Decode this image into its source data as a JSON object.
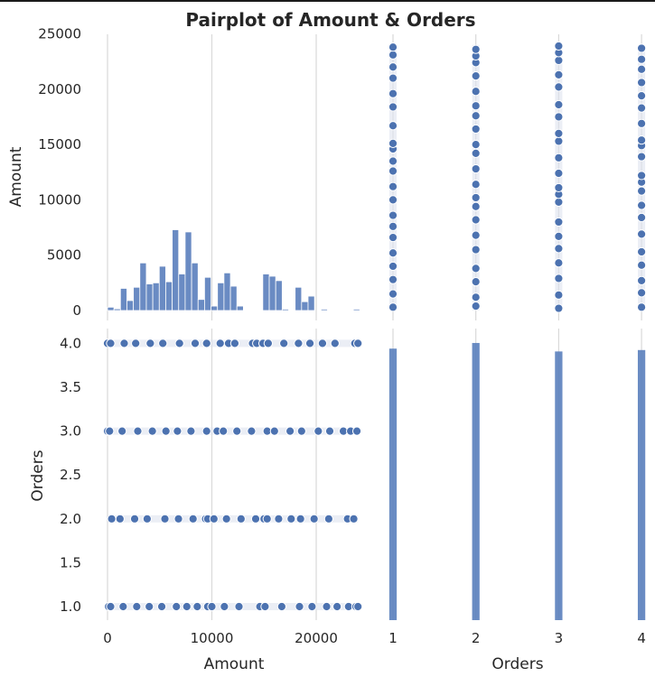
{
  "chart_data": {
    "type": "scatter",
    "title": "Pairplot of Amount & Orders",
    "variables": [
      "Amount",
      "Orders"
    ],
    "colors": {
      "marker": "#4c72b0",
      "bar": "#5a7fbd",
      "marker_edge": "#ffffff",
      "grid": "#d9d9d9",
      "frame": "#cfcfcf"
    },
    "grid": true,
    "amount_axis": {
      "label": "Amount",
      "range": [
        -1200,
        25000
      ],
      "ticks": [
        "0",
        "5000",
        "10000",
        "15000",
        "20000",
        "25000"
      ],
      "x_ticks": [
        "0",
        "10000",
        "20000"
      ]
    },
    "orders_axis": {
      "label": "Orders",
      "range": [
        0.85,
        4.1
      ],
      "y_ticks": [
        "1.0",
        "1.5",
        "2.0",
        "2.5",
        "3.0",
        "3.5",
        "4.0"
      ],
      "x_ticks": [
        "1",
        "2",
        "3",
        "4"
      ]
    },
    "panels": [
      {
        "position": "top-left",
        "type": "histogram",
        "variable": "Amount",
        "bin_width": 620,
        "bins": [
          {
            "start": 0,
            "count": 300
          },
          {
            "start": 620,
            "count": 150
          },
          {
            "start": 1240,
            "count": 2000
          },
          {
            "start": 1860,
            "count": 900
          },
          {
            "start": 2480,
            "count": 2100
          },
          {
            "start": 3100,
            "count": 4300
          },
          {
            "start": 3720,
            "count": 2400
          },
          {
            "start": 4340,
            "count": 2500
          },
          {
            "start": 4960,
            "count": 4000
          },
          {
            "start": 5580,
            "count": 2600
          },
          {
            "start": 6200,
            "count": 7300
          },
          {
            "start": 6820,
            "count": 3300
          },
          {
            "start": 7440,
            "count": 7100
          },
          {
            "start": 8060,
            "count": 4300
          },
          {
            "start": 8680,
            "count": 1000
          },
          {
            "start": 9300,
            "count": 3000
          },
          {
            "start": 9920,
            "count": 400
          },
          {
            "start": 10540,
            "count": 2500
          },
          {
            "start": 11160,
            "count": 3400
          },
          {
            "start": 11780,
            "count": 2200
          },
          {
            "start": 12400,
            "count": 400
          },
          {
            "start": 14880,
            "count": 3300
          },
          {
            "start": 15500,
            "count": 3100
          },
          {
            "start": 16120,
            "count": 2700
          },
          {
            "start": 16740,
            "count": 100
          },
          {
            "start": 17980,
            "count": 2100
          },
          {
            "start": 18600,
            "count": 800
          },
          {
            "start": 19220,
            "count": 1300
          },
          {
            "start": 20460,
            "count": 0
          },
          {
            "start": 23560,
            "count": 0
          }
        ]
      },
      {
        "position": "top-right",
        "type": "scatter",
        "x": "Orders",
        "y": "Amount",
        "points_by_orders": {
          "1": [
            300,
            1500,
            2800,
            4000,
            5200,
            6600,
            7600,
            8600,
            10000,
            11200,
            12600,
            13500,
            14600,
            15100,
            16700,
            18400,
            19600,
            21000,
            22000,
            23100,
            23800
          ],
          "2": [
            400,
            1200,
            2600,
            3800,
            5500,
            6800,
            8200,
            9400,
            10200,
            11400,
            12800,
            14200,
            15000,
            16400,
            17600,
            18500,
            19800,
            21200,
            22400,
            23000,
            23600
          ],
          "3": [
            200,
            1400,
            2900,
            4300,
            5600,
            6700,
            8000,
            9800,
            10500,
            11100,
            12400,
            13800,
            15300,
            16000,
            17500,
            18600,
            20200,
            21300,
            22600,
            23300,
            23900
          ],
          "4": [
            300,
            1600,
            2700,
            4100,
            5300,
            6900,
            8400,
            9500,
            10800,
            11600,
            12200,
            13900,
            14900,
            15400,
            16900,
            18300,
            19400,
            20600,
            21800,
            22700,
            23700
          ]
        }
      },
      {
        "position": "bottom-left",
        "type": "scatter",
        "x": "Amount",
        "y": "Orders",
        "points_by_orders": {
          "1": [
            100,
            300,
            1500,
            2800,
            4000,
            5200,
            6600,
            7600,
            8600,
            9600,
            10000,
            11200,
            12600,
            14600,
            15100,
            16700,
            18400,
            19600,
            21000,
            22000,
            23100,
            23800,
            24000
          ],
          "2": [
            400,
            1200,
            2600,
            3800,
            5500,
            6800,
            8200,
            9400,
            9600,
            10200,
            11400,
            12800,
            14200,
            15000,
            15300,
            16400,
            17600,
            18500,
            19800,
            21200,
            23000,
            23600
          ],
          "3": [
            0,
            200,
            1400,
            2900,
            4300,
            5600,
            6700,
            8000,
            9500,
            10500,
            11100,
            12400,
            13800,
            15300,
            16000,
            17500,
            18600,
            20200,
            21300,
            22600,
            23300,
            23900
          ],
          "4": [
            0,
            300,
            1600,
            2700,
            4100,
            5300,
            6900,
            8400,
            9500,
            10800,
            11600,
            12200,
            13900,
            14300,
            14900,
            15400,
            16900,
            18300,
            19400,
            20600,
            21800,
            23700,
            24000
          ]
        }
      },
      {
        "position": "bottom-right",
        "type": "histogram",
        "variable": "Orders",
        "bar_width_units": 0.09,
        "bars": [
          {
            "orders": 1,
            "relative_height": 0.96
          },
          {
            "orders": 2,
            "relative_height": 0.98
          },
          {
            "orders": 3,
            "relative_height": 0.95
          },
          {
            "orders": 4,
            "relative_height": 0.955
          }
        ]
      }
    ]
  }
}
